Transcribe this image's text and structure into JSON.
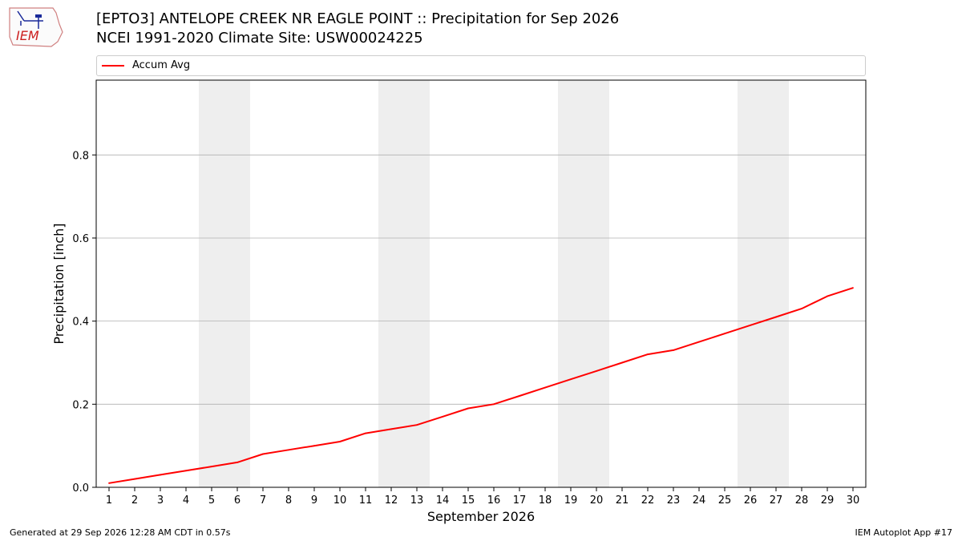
{
  "header": {
    "title_line1": "[EPTO3] ANTELOPE CREEK NR EAGLE POINT :: Precipitation for Sep 2026",
    "title_line2": "NCEI 1991-2020 Climate Site: USW00024225",
    "logo_text": "IEM"
  },
  "footer": {
    "generated": "Generated at 29 Sep 2026 12:28 AM CDT in 0.57s",
    "app": "IEM Autoplot App #17"
  },
  "colors": {
    "series": "#ff0000",
    "weekend_band": "#eeeeee",
    "grid": "#b0b0b0"
  },
  "chart_data": {
    "type": "line",
    "title": "[EPTO3] ANTELOPE CREEK NR EAGLE POINT :: Precipitation for Sep 2026",
    "subtitle": "NCEI 1991-2020 Climate Site: USW00024225",
    "xlabel": "September 2026",
    "ylabel": "Precipitation [inch]",
    "x": [
      1,
      2,
      3,
      4,
      5,
      6,
      7,
      8,
      9,
      10,
      11,
      12,
      13,
      14,
      15,
      16,
      17,
      18,
      19,
      20,
      21,
      22,
      23,
      24,
      25,
      26,
      27,
      28,
      29,
      30
    ],
    "xlim": [
      0.5,
      30.5
    ],
    "ylim": [
      0,
      0.98
    ],
    "yticks": [
      0.0,
      0.2,
      0.4,
      0.6,
      0.8
    ],
    "ytick_labels": [
      "0.0",
      "0.2",
      "0.4",
      "0.6",
      "0.8"
    ],
    "xtick_labels": [
      "1",
      "2",
      "3",
      "4",
      "5",
      "6",
      "7",
      "8",
      "9",
      "10",
      "11",
      "12",
      "13",
      "14",
      "15",
      "16",
      "17",
      "18",
      "19",
      "20",
      "21",
      "22",
      "23",
      "24",
      "25",
      "26",
      "27",
      "28",
      "29",
      "30"
    ],
    "grid": "y",
    "legend_position": "top",
    "weekend_bands": [
      [
        4.5,
        6.5
      ],
      [
        11.5,
        13.5
      ],
      [
        18.5,
        20.5
      ],
      [
        25.5,
        27.5
      ]
    ],
    "series": [
      {
        "name": "Accum Avg",
        "color": "#ff0000",
        "values": [
          0.01,
          0.02,
          0.03,
          0.04,
          0.05,
          0.06,
          0.08,
          0.09,
          0.1,
          0.11,
          0.13,
          0.14,
          0.15,
          0.17,
          0.19,
          0.2,
          0.22,
          0.24,
          0.26,
          0.28,
          0.3,
          0.32,
          0.33,
          0.35,
          0.37,
          0.39,
          0.41,
          0.43,
          0.46,
          0.48
        ]
      }
    ]
  }
}
